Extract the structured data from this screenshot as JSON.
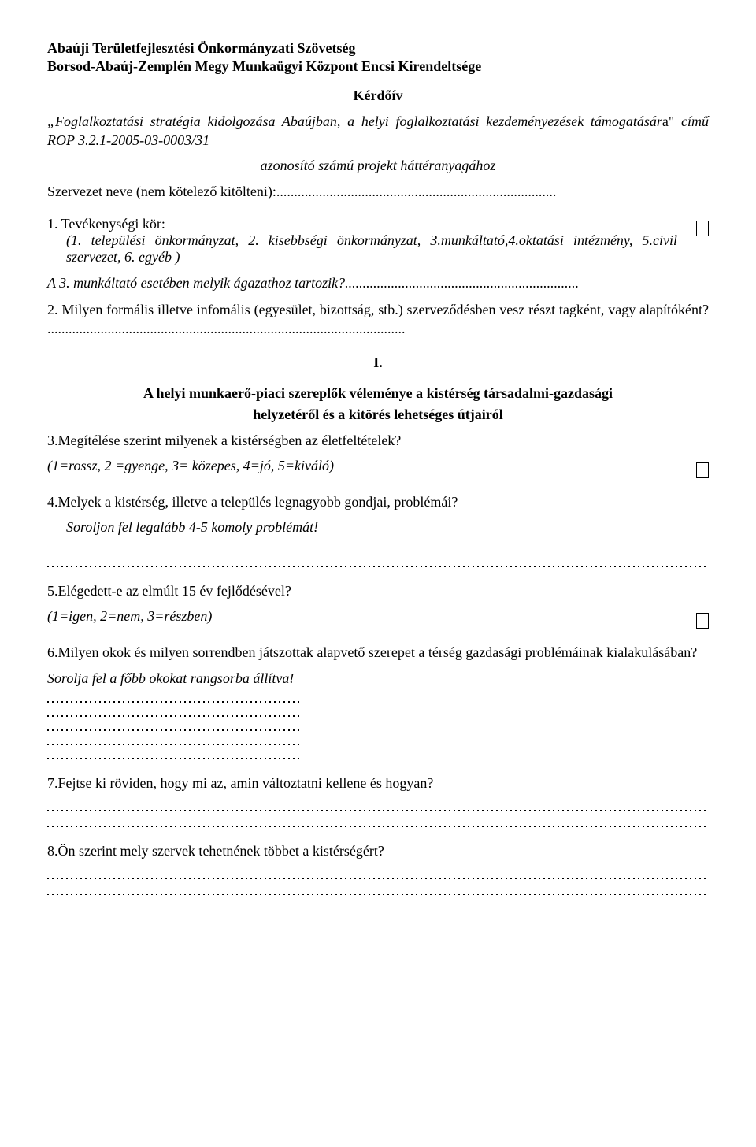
{
  "header": {
    "line1": "Abaúji Területfejlesztési Önkormányzati Szövetség",
    "line2": "Borsod-Abaúj-Zemplén Megy Munkaügyi Központ Encsi Kirendeltsége",
    "title": "Kérdőív",
    "intro_italic_prefix": "„Foglalkoztatási stratégia kidolgozása Abaújban, a helyi foglalkoztatási kezdeményezések támogatásár",
    "intro_plain": "a\" ",
    "intro_italic_suffix": "című ROP 3.2.1-2005-03-0003/31",
    "intro_sub": "azonosító számú projekt háttéranyagához"
  },
  "org_label": "Szervezet neve (nem kötelező kitölteni):...............................................................................",
  "q1": {
    "label": "1. Tevékenységi kör:",
    "options": "(1. települési önkormányzat, 2. kisebbségi önkormányzat, 3.munkáltató,4.oktatási intézmény, 5.civil szervezet, 6. egyéb )"
  },
  "q1b": "A 3. munkáltató esetében melyik ágazathoz tartozik?..................................................................",
  "q2": "2. Milyen formális illetve infomális (egyesület, bizottság, stb.) szerveződésben vesz részt tagként, vagy alapítóként? .....................................................................................................",
  "section1": {
    "num": "I.",
    "title_a": "A helyi munkaerő-piaci szereplők véleménye a kistérség társadalmi-gazdasági",
    "title_b": "helyzetéről és a kitörés lehetséges útjairól"
  },
  "q3": {
    "text": "3.Megítélése szerint milyenek a kistérségben az életfeltételek?",
    "scale": "(1=rossz, 2 =gyenge, 3= közepes, 4=jó, 5=kiváló)"
  },
  "q4": {
    "text": "4.Melyek a kistérség, illetve a település legnagyobb gondjai, problémái?",
    "hint": "Soroljon fel legalább 4-5 komoly problémát!"
  },
  "q5": {
    "text": "5.Elégedett-e az elmúlt 15 év fejlődésével?",
    "scale": "(1=igen, 2=nem, 3=részben)"
  },
  "q6": {
    "text": "6.Milyen okok és milyen sorrendben játszottak alapvető szerepet a térség gazdasági problémáinak kialakulásában?",
    "hint": "Sorolja fel a főbb okokat rangsorba állítva!"
  },
  "q7": "7.Fejtse ki röviden, hogy mi az, amin változtatni kellene és hogyan?",
  "q8": "8.Ön szerint mely szervek tehetnének többet a kistérségért?"
}
